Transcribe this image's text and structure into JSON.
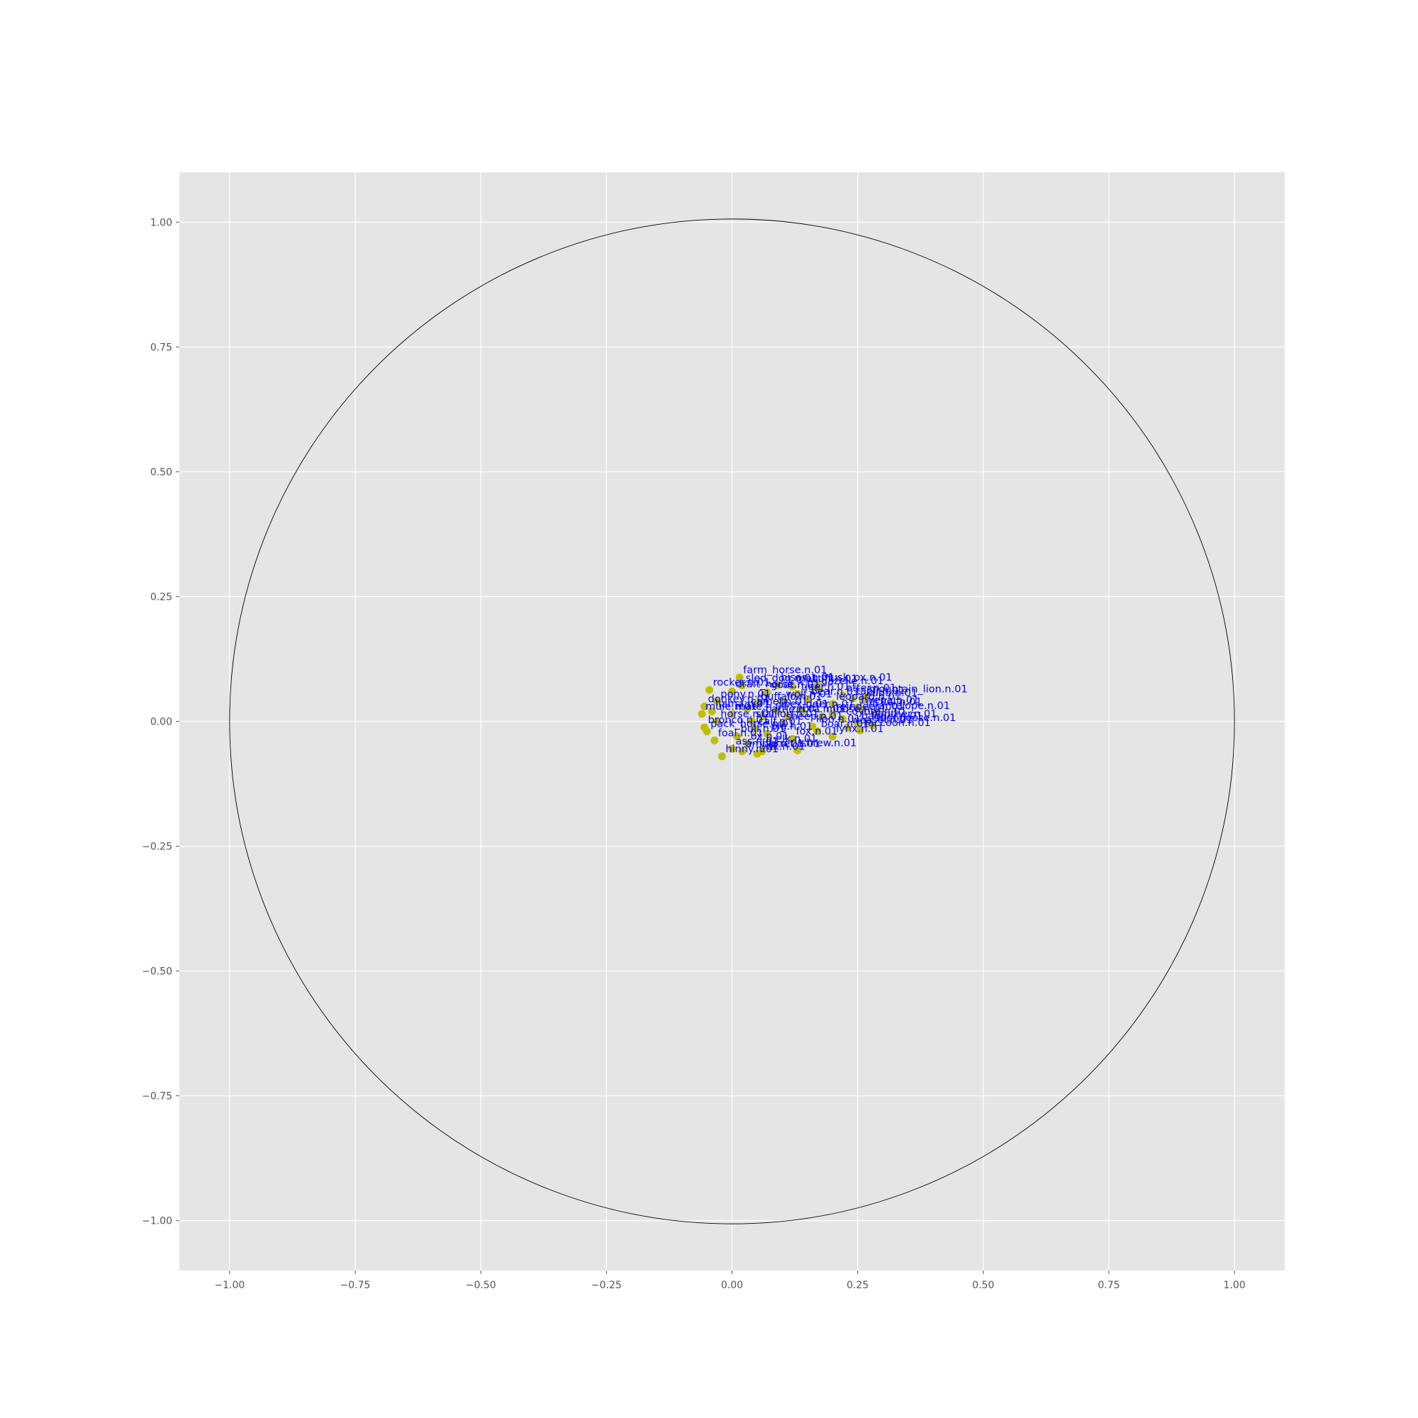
{
  "chart_data": {
    "type": "scatter",
    "title": "",
    "xlabel": "",
    "ylabel": "",
    "xlim": [
      -1.1,
      1.1
    ],
    "ylim": [
      -1.1,
      1.1
    ],
    "xticks": [
      -1.0,
      -0.75,
      -0.5,
      -0.25,
      0.0,
      0.25,
      0.5,
      0.75,
      1.0
    ],
    "yticks": [
      -1.0,
      -0.75,
      -0.5,
      -0.25,
      0.0,
      0.25,
      0.5,
      0.75,
      1.0
    ],
    "xtick_labels": [
      "−1.00",
      "−0.75",
      "−0.50",
      "−0.25",
      "0.00",
      "0.25",
      "0.50",
      "0.75",
      "1.00"
    ],
    "ytick_labels": [
      "−1.00",
      "−0.75",
      "−0.50",
      "−0.25",
      "0.00",
      "0.25",
      "0.50",
      "0.75",
      "1.00"
    ],
    "grid": true,
    "background_color": "#e5e5e5",
    "grid_color": "#ffffff",
    "unit_circle": {
      "center": [
        0,
        0
      ],
      "radius": 1.0,
      "color": "#000000"
    },
    "marker_color": "#bfbf00",
    "label_color": "#0000ff",
    "points": [
      {
        "x": 0.015,
        "y": 0.088,
        "label": "farm_horse.n.01"
      },
      {
        "x": 0.02,
        "y": 0.072,
        "label": "sled_dog.n.01"
      },
      {
        "x": 0.09,
        "y": 0.073,
        "label": "bison.n.01"
      },
      {
        "x": 0.17,
        "y": 0.073,
        "label": "musk_ox.n.01"
      },
      {
        "x": 0.12,
        "y": 0.07,
        "label": "mastiff.n.01"
      },
      {
        "x": 0.17,
        "y": 0.066,
        "label": "gazelle.n.01"
      },
      {
        "x": -0.045,
        "y": 0.063,
        "label": "rocker.n.01"
      },
      {
        "x": 0.0,
        "y": 0.06,
        "label": "draft_horse.n.01"
      },
      {
        "x": 0.07,
        "y": 0.058,
        "label": "goat.n.01"
      },
      {
        "x": 0.22,
        "y": 0.052,
        "label": "otter.n.01"
      },
      {
        "x": 0.265,
        "y": 0.05,
        "label": "mountain_lion.n.01"
      },
      {
        "x": 0.24,
        "y": 0.046,
        "label": "tapir.n.01"
      },
      {
        "x": 0.26,
        "y": 0.042,
        "label": "kudu.n.01"
      },
      {
        "x": -0.03,
        "y": 0.04,
        "label": "pony.n.01"
      },
      {
        "x": 0.1,
        "y": 0.04,
        "label": "wolf.n.01"
      },
      {
        "x": -0.055,
        "y": 0.03,
        "label": "donkey.n.01"
      },
      {
        "x": 0.25,
        "y": 0.028,
        "label": "hyena.n.01"
      },
      {
        "x": 0.26,
        "y": 0.024,
        "label": "jackal.n.01"
      },
      {
        "x": 0.285,
        "y": 0.016,
        "label": "antelope.n.01"
      },
      {
        "x": 0.03,
        "y": 0.025,
        "label": "camel.n.01"
      },
      {
        "x": -0.04,
        "y": 0.02,
        "label": "llama.n.01"
      },
      {
        "x": 0.14,
        "y": 0.02,
        "label": "deer.n.01"
      },
      {
        "x": -0.06,
        "y": 0.015,
        "label": "mule.n.01"
      },
      {
        "x": 0.2,
        "y": 0.015,
        "label": "reindeer.n.01"
      },
      {
        "x": 0.06,
        "y": 0.01,
        "label": "cattle.n.01"
      },
      {
        "x": 0.22,
        "y": 0.005,
        "label": "coyote.n.01"
      },
      {
        "x": 0.27,
        "y": 0.0,
        "label": "panther.n.01"
      },
      {
        "x": -0.03,
        "y": 0.0,
        "label": "horse.n.01"
      },
      {
        "x": 0.25,
        "y": -0.004,
        "label": "badger.n.01"
      },
      {
        "x": 0.28,
        "y": -0.008,
        "label": "mongoose.n.01"
      },
      {
        "x": 0.1,
        "y": -0.005,
        "label": "sheep.n.01"
      },
      {
        "x": 0.23,
        "y": -0.012,
        "label": "weasel.n.01"
      },
      {
        "x": 0.255,
        "y": -0.018,
        "label": "raccoon.n.01"
      },
      {
        "x": -0.055,
        "y": -0.012,
        "label": "bronco.n.01"
      },
      {
        "x": -0.05,
        "y": -0.02,
        "label": "pack_horse.n.01"
      },
      {
        "x": 0.17,
        "y": -0.02,
        "label": "boar.n.01"
      },
      {
        "x": 0.07,
        "y": -0.025,
        "label": "pig.n.01"
      },
      {
        "x": 0.01,
        "y": -0.03,
        "label": "bull.n.01"
      },
      {
        "x": 0.2,
        "y": -0.03,
        "label": "lynx.n.01"
      },
      {
        "x": 0.12,
        "y": -0.035,
        "label": "fox.n.01"
      },
      {
        "x": -0.035,
        "y": -0.038,
        "label": "foal.n.01"
      },
      {
        "x": 0.03,
        "y": -0.045,
        "label": "ox.n.01"
      },
      {
        "x": 0.08,
        "y": -0.05,
        "label": "elk.n.01"
      },
      {
        "x": 0.02,
        "y": -0.06,
        "label": "amble.n.01"
      },
      {
        "x": 0.06,
        "y": -0.06,
        "label": "ferret.n.01"
      },
      {
        "x": 0.13,
        "y": -0.058,
        "label": "shrew.n.01"
      },
      {
        "x": 0.0,
        "y": -0.055,
        "label": "ass.n.01"
      },
      {
        "x": -0.02,
        "y": -0.07,
        "label": "hinny.n.01"
      },
      {
        "x": 0.05,
        "y": -0.065,
        "label": "yak.n.01"
      },
      {
        "x": 0.18,
        "y": 0.01,
        "label": "moose.n.01"
      },
      {
        "x": 0.15,
        "y": 0.045,
        "label": "bear.n.01"
      },
      {
        "x": 0.05,
        "y": 0.035,
        "label": "buffalo.n.01"
      },
      {
        "x": 0.2,
        "y": 0.035,
        "label": "leopard.n.01"
      },
      {
        "x": 0.11,
        "y": 0.01,
        "label": "zebra.n.01"
      },
      {
        "x": 0.16,
        "y": -0.01,
        "label": "lion.n.01"
      },
      {
        "x": 0.04,
        "y": 0.0,
        "label": "stallion.n.01"
      },
      {
        "x": 0.0,
        "y": 0.015,
        "label": "mare.n.01"
      },
      {
        "x": 0.09,
        "y": 0.02,
        "label": "ibex.n.01"
      },
      {
        "x": 0.13,
        "y": 0.055,
        "label": "tiger.n.01"
      },
      {
        "x": 0.045,
        "y": -0.015,
        "label": "calf.n.01"
      }
    ]
  }
}
